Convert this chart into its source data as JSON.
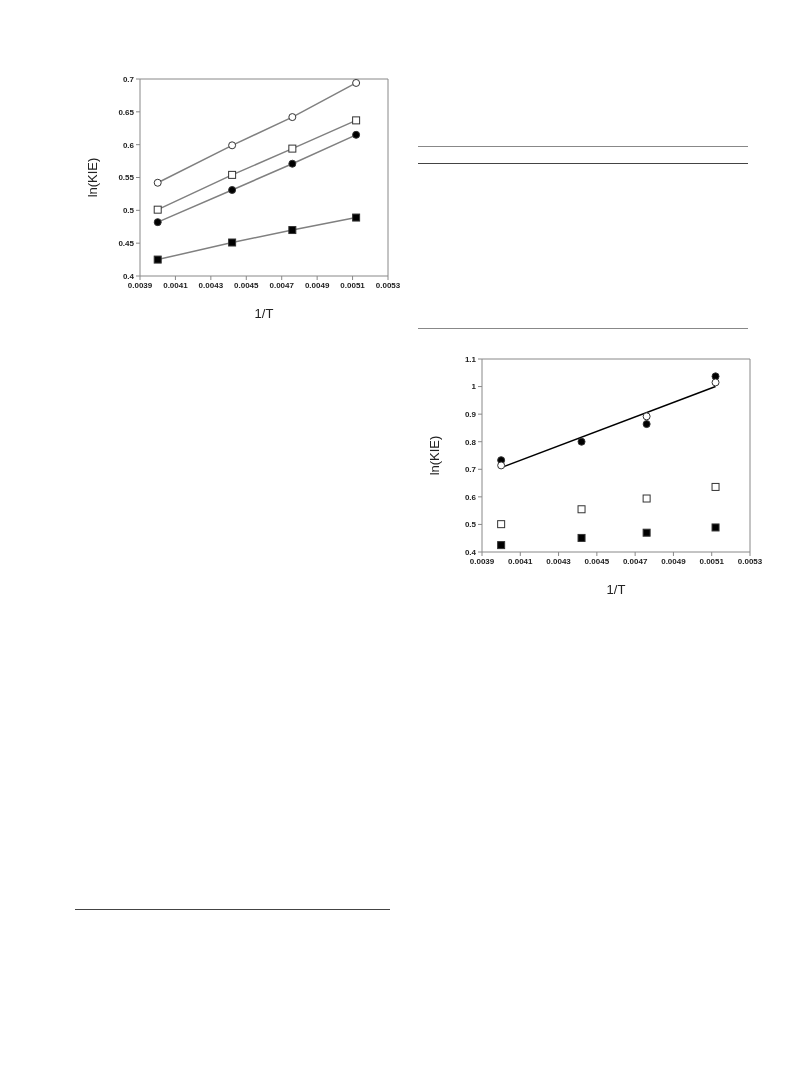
{
  "chart_data": [
    {
      "type": "scatter",
      "xlabel": "1/T",
      "ylabel": "ln(KIE)",
      "xlim": [
        0.0039,
        0.0053
      ],
      "xticks": [
        0.0039,
        0.0041,
        0.0043,
        0.0045,
        0.0047,
        0.0049,
        0.0051,
        0.0053
      ],
      "ylim": [
        0.4,
        0.7
      ],
      "yticks": [
        0.4,
        0.45,
        0.5,
        0.55,
        0.6,
        0.65,
        0.7
      ],
      "x": [
        0.004,
        0.00442,
        0.00476,
        0.00512
      ],
      "series": [
        {
          "type": "line",
          "color": "#808080",
          "marker": "none",
          "line_style": "solid",
          "values": [
            0.542,
            0.599,
            0.642,
            0.694
          ]
        },
        {
          "type": "line",
          "color": "#808080",
          "marker": "none",
          "line_style": "solid",
          "values": [
            0.501,
            0.554,
            0.594,
            0.637
          ]
        },
        {
          "type": "line",
          "color": "#808080",
          "marker": "none",
          "line_style": "solid",
          "values": [
            0.482,
            0.531,
            0.571,
            0.615
          ]
        },
        {
          "type": "line",
          "color": "#808080",
          "marker": "none",
          "line_style": "solid",
          "values": [
            0.425,
            0.451,
            0.47,
            0.489
          ]
        },
        {
          "color": "#ffffff",
          "marker": "circle",
          "values": [
            0.542,
            0.599,
            0.642,
            0.694
          ]
        },
        {
          "color": "#ffffff",
          "marker": "square",
          "values": [
            0.501,
            0.554,
            0.594,
            0.637
          ]
        },
        {
          "color": "#000000",
          "marker": "circle",
          "values": [
            0.482,
            0.531,
            0.571,
            0.615
          ]
        },
        {
          "color": "#000000",
          "marker": "square",
          "values": [
            0.425,
            0.451,
            0.47,
            0.489
          ]
        }
      ]
    },
    {
      "type": "scatter",
      "xlabel": "1/T",
      "ylabel": "ln(KIE)",
      "xlim": [
        0.0039,
        0.0053
      ],
      "xticks": [
        0.0039,
        0.0041,
        0.0043,
        0.0045,
        0.0047,
        0.0049,
        0.0051,
        0.0053
      ],
      "ylim": [
        0.4,
        1.1
      ],
      "yticks": [
        0.4,
        0.5,
        0.6,
        0.7,
        0.8,
        0.9,
        1,
        1.1
      ],
      "x": [
        0.004,
        0.00442,
        0.00476,
        0.00512
      ],
      "series": [
        {
          "type": "line",
          "color": "#000000",
          "marker": "none",
          "line_style": "solid",
          "x": [
            0.004,
            0.00512
          ],
          "values": [
            0.706,
            1.0
          ]
        },
        {
          "color": "#000000",
          "marker": "circle",
          "values": [
            0.733,
            0.8,
            0.864,
            1.037
          ]
        },
        {
          "color": "#ffffff",
          "marker": "circle",
          "values": [
            0.714,
            null,
            0.892,
            1.015
          ]
        },
        {
          "color": "#ffffff",
          "marker": "square",
          "values": [
            0.501,
            0.555,
            0.594,
            0.636
          ]
        },
        {
          "color": "#000000",
          "marker": "square",
          "values": [
            0.425,
            0.451,
            0.47,
            0.489
          ]
        }
      ]
    }
  ]
}
